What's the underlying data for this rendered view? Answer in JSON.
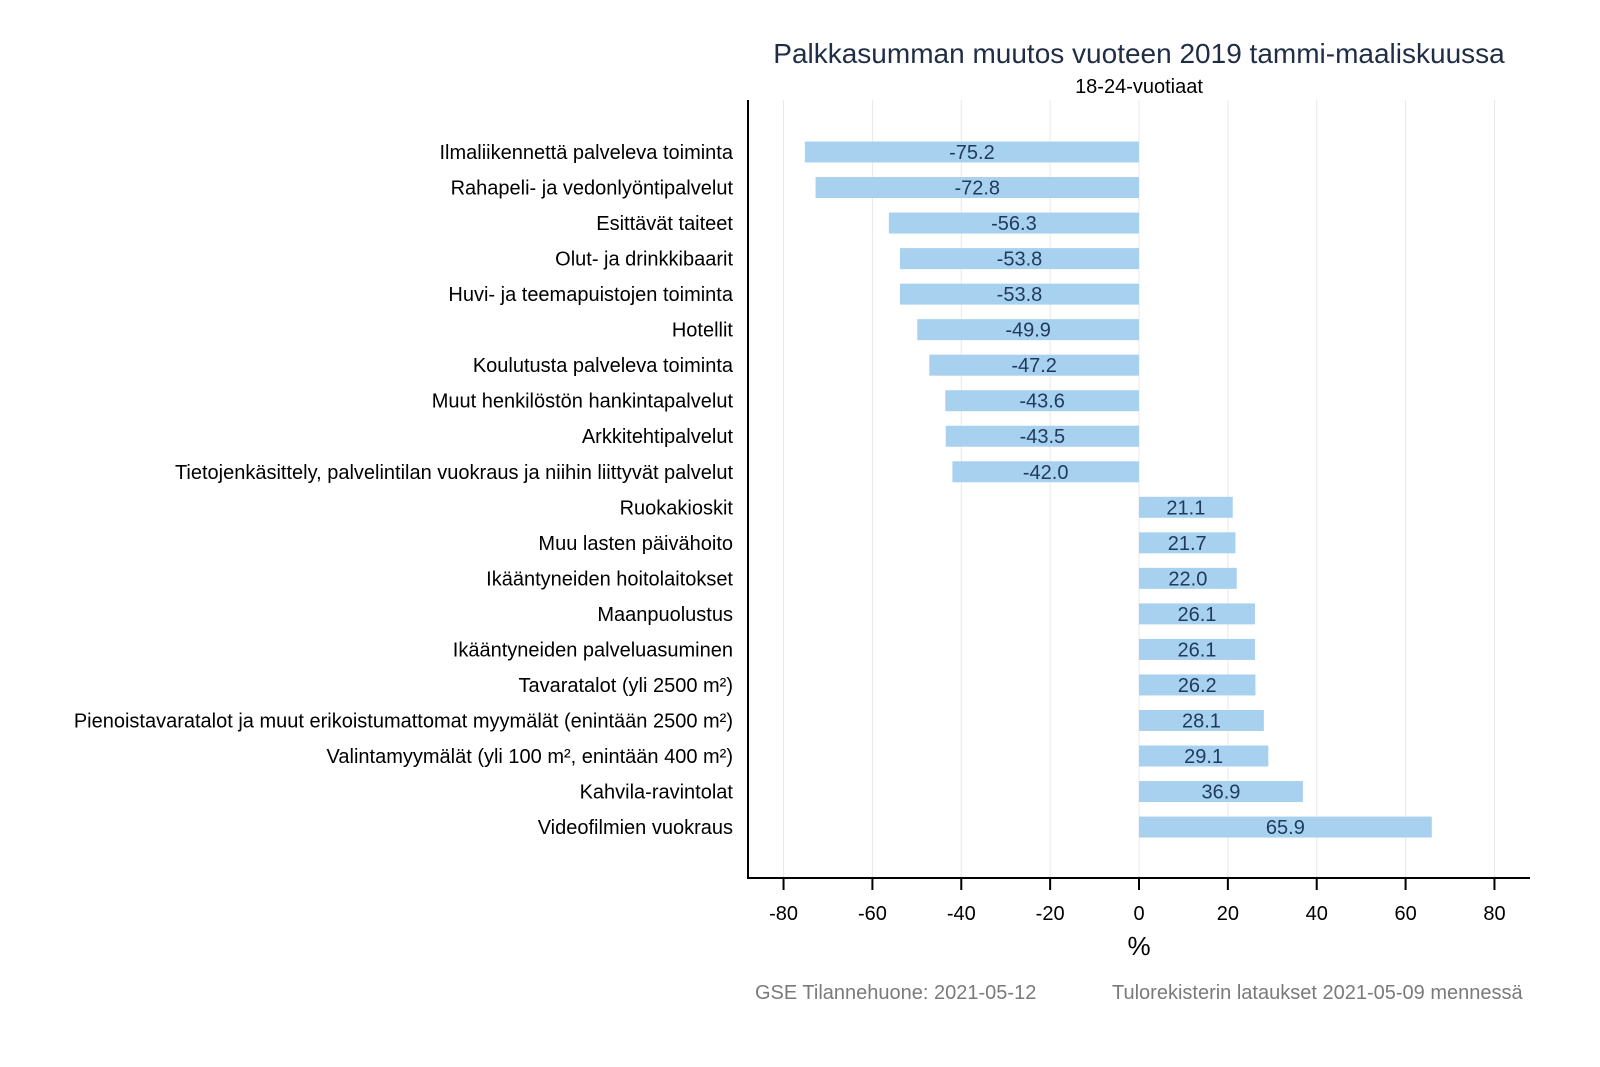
{
  "chart_data": {
    "type": "bar",
    "orientation": "horizontal",
    "title": "Palkkasumman muutos vuoteen 2019 tammi-maaliskuussa",
    "subtitle": "18-24-vuotiaat",
    "xlabel": "%",
    "ylabel": "",
    "xlim": [
      -88,
      88
    ],
    "xticks": [
      -80,
      -60,
      -40,
      -20,
      0,
      20,
      40,
      60,
      80
    ],
    "grid": true,
    "bar_color": "#a8d1f0",
    "value_label_color": "#1f3b5c",
    "categories": [
      "Ilmaliikennettä palveleva toiminta",
      "Rahapeli- ja vedonlyöntipalvelut",
      "Esittävät taiteet",
      "Olut- ja drinkkibaarit",
      "Huvi- ja teemapuistojen toiminta",
      "Hotellit",
      "Koulutusta palveleva toiminta",
      "Muut henkilöstön hankintapalvelut",
      "Arkkitehtipalvelut",
      "Tietojenkäsittely, palvelintilan vuokraus ja niihin liittyvät palvelut",
      "Ruokakioskit",
      "Muu lasten päivähoito",
      "Ikääntyneiden hoitolaitokset",
      "Maanpuolustus",
      "Ikääntyneiden palveluasuminen",
      "Tavaratalot (yli 2500 m²)",
      "Pienoistavaratalot ja muut erikoistumattomat myymälät (enintään 2500 m²)",
      "Valintamyymälät (yli 100 m², enintään 400 m²)",
      "Kahvila-ravintolat",
      "Videofilmien vuokraus"
    ],
    "values": [
      -75.2,
      -72.8,
      -56.3,
      -53.8,
      -53.8,
      -49.9,
      -47.2,
      -43.6,
      -43.5,
      -42.0,
      21.1,
      21.7,
      22.0,
      26.1,
      26.1,
      26.2,
      28.1,
      29.1,
      36.9,
      65.9
    ],
    "value_labels": [
      "-75.2",
      "-72.8",
      "-56.3",
      "-53.8",
      "-53.8",
      "-49.9",
      "-47.2",
      "-43.6",
      "-43.5",
      "-42.0",
      "21.1",
      "21.7",
      "22.0",
      "26.1",
      "26.1",
      "26.2",
      "28.1",
      "29.1",
      "36.9",
      "65.9"
    ]
  },
  "footer": {
    "left": "GSE Tilannehuone: 2021-05-12",
    "right": "Tulorekisterin lataukset 2021-05-09 mennessä"
  }
}
